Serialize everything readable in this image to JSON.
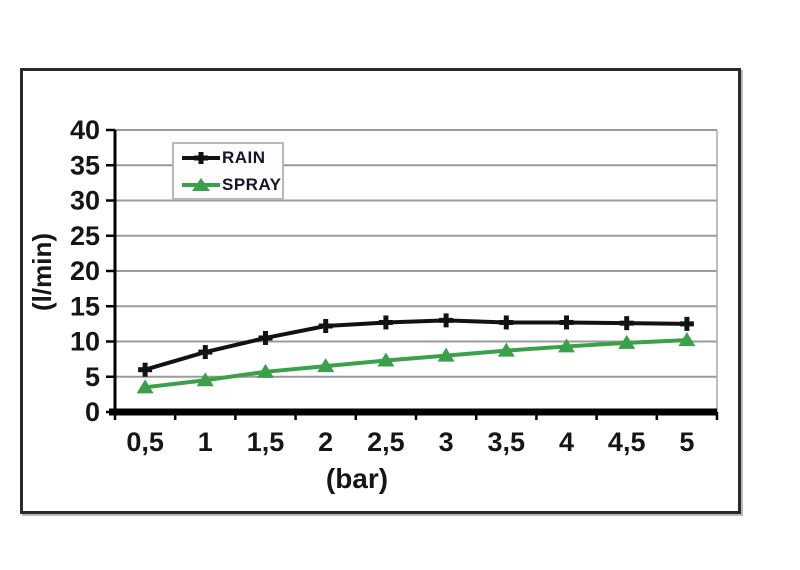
{
  "chart_data": {
    "type": "line",
    "title": "",
    "xlabel": "(bar)",
    "ylabel": "(l/min)",
    "categories": [
      "0,5",
      "1",
      "1,5",
      "2",
      "2,5",
      "3",
      "3,5",
      "4",
      "4,5",
      "5"
    ],
    "series": [
      {
        "name": "RAIN",
        "color": "#121212",
        "marker": "plus",
        "values": [
          6,
          8.5,
          10.5,
          12.2,
          12.7,
          13,
          12.7,
          12.7,
          12.6,
          12.5
        ]
      },
      {
        "name": "SPRAY",
        "color": "#3aa04a",
        "marker": "triangle",
        "values": [
          3.5,
          4.5,
          5.7,
          6.5,
          7.3,
          8,
          8.7,
          9.3,
          9.8,
          10.2
        ]
      }
    ],
    "ylim": [
      0,
      40
    ],
    "yticks": [
      0,
      5,
      10,
      15,
      20,
      25,
      30,
      35,
      40
    ],
    "grid": "horizontal",
    "legend_position": "top-left-inside",
    "colors": {
      "gridline": "#9b9b9b",
      "axis": "#000000",
      "text": "#161616",
      "plot_right_border": "#aaaaaa"
    }
  }
}
